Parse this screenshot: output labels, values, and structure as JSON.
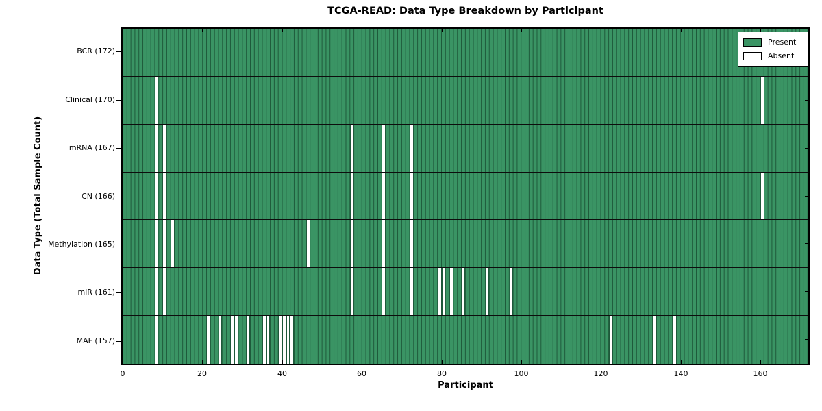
{
  "chart_data": {
    "type": "heatmap",
    "title": "TCGA-READ: Data Type Breakdown by Participant",
    "xlabel": "Participant",
    "ylabel": "Data Type (Total Sample Count)",
    "n_participants": 172,
    "xlim": [
      0,
      172
    ],
    "x_ticks": [
      0,
      20,
      40,
      60,
      80,
      100,
      120,
      140,
      160
    ],
    "grid": "row separators only",
    "legend_position": "upper right",
    "legend": {
      "entries": [
        {
          "label": "Present",
          "color": "#3A9464"
        },
        {
          "label": "Absent",
          "color": "#FFFFFF"
        }
      ]
    },
    "colors": {
      "present": "#3A9464",
      "absent": "#FFFFFF",
      "cell_edge": "#1E583A",
      "separator": "#0D0D0D",
      "axis": "#000000"
    },
    "rows": [
      {
        "data_type": "BCR",
        "label": "BCR (172)",
        "total": 172,
        "absent_participants": []
      },
      {
        "data_type": "Clinical",
        "label": "Clinical (170)",
        "total": 170,
        "absent_participants": [
          8,
          160
        ]
      },
      {
        "data_type": "mRNA",
        "label": "mRNA (167)",
        "total": 167,
        "absent_participants": [
          8,
          10,
          57,
          65,
          72
        ]
      },
      {
        "data_type": "CN",
        "label": "CN (166)",
        "total": 166,
        "absent_participants": [
          8,
          10,
          57,
          65,
          72,
          160
        ]
      },
      {
        "data_type": "Methylation",
        "label": "Methylation (165)",
        "total": 165,
        "absent_participants": [
          8,
          10,
          12,
          46,
          57,
          65,
          72
        ]
      },
      {
        "data_type": "miR",
        "label": "miR (161)",
        "total": 161,
        "absent_participants": [
          8,
          10,
          57,
          65,
          72,
          79,
          80,
          82,
          85,
          91,
          97
        ]
      },
      {
        "data_type": "MAF",
        "label": "MAF (157)",
        "total": 157,
        "absent_participants": [
          8,
          21,
          24,
          27,
          28,
          31,
          35,
          36,
          39,
          40,
          41,
          42,
          122,
          133,
          138
        ]
      }
    ]
  }
}
